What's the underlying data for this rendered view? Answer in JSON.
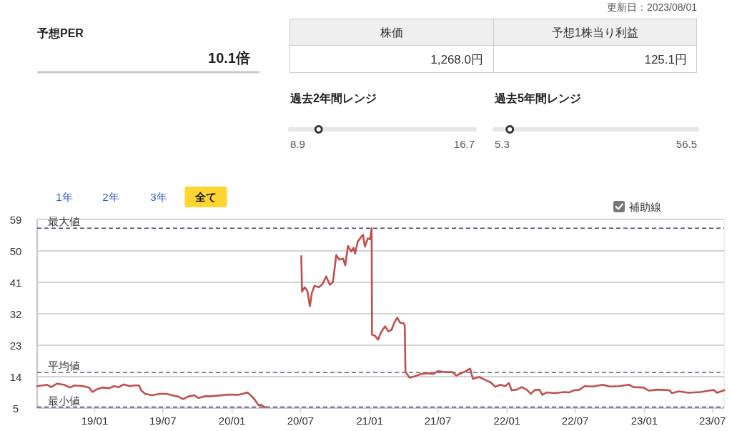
{
  "chart_data": [
    {
      "type": "other",
      "title": "予想PER",
      "annotations": [
        "10.1倍",
        "株価",
        "予想1株当り利益",
        "1,268.0円",
        "125.1円",
        "更新日：2023/08/01"
      ]
    },
    {
      "type": "other",
      "title": "過去2年間レンジ",
      "annotations": [
        "8.9",
        "16.7"
      ]
    },
    {
      "type": "other",
      "title": "過去5年間レンジ",
      "annotations": [
        "5.3",
        "56.5"
      ]
    },
    {
      "type": "line",
      "line_style": "solid",
      "grid": "y",
      "series": [
        {
          "color": "#c0504d",
          "x": [
            "2018-08-01",
            "2018-08-28",
            "2018-09-07",
            "2018-09-22",
            "2018-10-11",
            "2018-10-27",
            "2018-11-09",
            "2018-12-01",
            "2018-12-17",
            "2018-12-26",
            "2019-01-05",
            "2019-01-21",
            "2019-02-09",
            "2019-02-21",
            "2019-03-06",
            "2019-03-19",
            "2019-04-04",
            "2019-04-16",
            "2019-04-29",
            "2019-05-05",
            "2019-05-15",
            "2019-06-03",
            "2019-06-22",
            "2019-07-11",
            "2019-07-30",
            "2019-08-11",
            "2019-08-24",
            "2019-09-06",
            "2019-09-22",
            "2019-10-04",
            "2019-10-20",
            "2019-11-08",
            "2019-11-27",
            "2019-12-23",
            "2020-01-17",
            "2020-01-29",
            "2020-02-11",
            "2020-02-27",
            "2020-03-11",
            "2020-03-20",
            "2020-03-26",
            "2020-04-01"
          ],
          "values": [
            11.3,
            11.7,
            11.0,
            12.0,
            11.7,
            10.9,
            11.5,
            11.3,
            10.9,
            9.6,
            10.3,
            10.9,
            10.7,
            11.3,
            11.0,
            11.8,
            11.3,
            11.5,
            11.5,
            10.0,
            9.1,
            8.7,
            9.1,
            9.1,
            8.6,
            8.3,
            7.6,
            8.3,
            8.7,
            7.9,
            8.4,
            8.4,
            8.6,
            8.9,
            8.8,
            9.1,
            9.5,
            7.9,
            5.9,
            5.9,
            5.3,
            5.3
          ]
        },
        {
          "color": "#c0504d",
          "x": [
            "2020-07-03",
            "2020-07-05",
            "2020-07-12",
            "2020-07-19",
            "2020-07-26",
            "2020-07-31",
            "2020-08-07",
            "2020-08-19",
            "2020-08-29",
            "2020-09-07",
            "2020-09-17",
            "2020-09-25",
            "2020-10-04",
            "2020-10-12",
            "2020-10-22",
            "2020-10-28",
            "2020-11-04",
            "2020-11-13",
            "2020-11-19",
            "2020-11-23",
            "2020-11-30",
            "2020-12-09",
            "2020-12-14",
            "2020-12-19",
            "2020-12-27",
            "2021-01-02",
            "2021-01-06",
            "2021-01-07",
            "2021-01-15",
            "2021-01-23",
            "2021-01-31",
            "2021-02-11",
            "2021-02-19",
            "2021-02-28",
            "2021-03-07",
            "2021-03-15",
            "2021-03-23",
            "2021-03-31",
            "2021-04-04",
            "2021-04-06",
            "2021-04-17",
            "2021-04-30",
            "2021-05-19",
            "2021-06-03",
            "2021-06-19",
            "2021-07-02",
            "2021-07-21",
            "2021-08-09",
            "2021-08-19",
            "2021-09-10",
            "2021-09-25",
            "2021-10-02",
            "2021-10-18",
            "2021-11-02",
            "2021-11-05",
            "2021-11-18",
            "2021-12-01",
            "2021-12-14",
            "2021-12-27",
            "2022-01-06",
            "2022-01-13",
            "2022-01-27",
            "2022-02-09",
            "2022-02-22",
            "2022-03-05",
            "2022-03-16",
            "2022-03-28",
            "2022-04-05",
            "2022-04-16",
            "2022-05-08",
            "2022-06-03",
            "2022-06-15",
            "2022-06-28",
            "2022-07-11",
            "2022-07-26",
            "2022-08-18",
            "2022-09-12",
            "2022-10-01",
            "2022-10-26",
            "2022-11-21",
            "2022-12-03",
            "2022-12-29",
            "2023-01-13",
            "2023-02-05",
            "2023-03-09",
            "2023-03-15",
            "2023-04-03",
            "2023-04-28",
            "2023-05-30",
            "2023-07-04",
            "2023-07-13",
            "2023-08-01"
          ],
          "values": [
            48.5,
            38.3,
            39.6,
            38.6,
            34.2,
            37.9,
            40.0,
            39.6,
            40.6,
            42.7,
            40.3,
            41.0,
            48.8,
            47.5,
            47.8,
            45.9,
            51.4,
            49.8,
            50.9,
            49.2,
            52.6,
            54.0,
            54.6,
            51.2,
            53.6,
            53.3,
            56.5,
            26.0,
            25.7,
            24.6,
            26.7,
            28.4,
            27.0,
            27.4,
            29.4,
            30.9,
            29.4,
            29.4,
            28.7,
            15.4,
            13.7,
            14.1,
            14.8,
            15.0,
            14.8,
            15.6,
            15.3,
            15.3,
            14.3,
            15.4,
            16.3,
            13.4,
            13.9,
            13.2,
            13.0,
            12.4,
            11.1,
            11.7,
            11.3,
            12.2,
            10.1,
            10.3,
            11.0,
            10.3,
            9.1,
            10.2,
            10.3,
            8.8,
            9.5,
            9.3,
            9.6,
            9.5,
            10.1,
            10.2,
            11.3,
            11.2,
            11.7,
            11.2,
            11.3,
            11.7,
            11.0,
            10.9,
            10.0,
            10.3,
            10.1,
            9.3,
            9.8,
            9.4,
            9.6,
            10.2,
            9.4,
            10.1
          ]
        }
      ],
      "xlim": [
        "2018-08-01",
        "2023-08-01"
      ],
      "xticks": [
        {
          "value": "2019-01-01",
          "label": "19/01"
        },
        {
          "value": "2019-07-01",
          "label": "19/07"
        },
        {
          "value": "2020-01-01",
          "label": "20/01"
        },
        {
          "value": "2020-07-01",
          "label": "20/07"
        },
        {
          "value": "2021-01-01",
          "label": "21/01"
        },
        {
          "value": "2021-07-01",
          "label": "21/07"
        },
        {
          "value": "2022-01-01",
          "label": "22/01"
        },
        {
          "value": "2022-07-01",
          "label": "22/07"
        },
        {
          "value": "2023-01-01",
          "label": "23/01"
        },
        {
          "value": "2023-07-01",
          "label": "23/07"
        }
      ],
      "ylim": [
        5,
        59
      ],
      "yticks": [
        5,
        14,
        23,
        32,
        41,
        50,
        59
      ],
      "ref_lines": [
        {
          "axis": "y",
          "value": 56.5,
          "label": "最大値",
          "color": "#4e3f78",
          "line_style": "dashed"
        },
        {
          "axis": "y",
          "value": 15.2,
          "label": "平均値",
          "color": "#4e3f78",
          "line_style": "dashed"
        },
        {
          "axis": "y",
          "value": 5.3,
          "label": "最小値",
          "color": "#4e3f78",
          "line_style": "dashed"
        }
      ],
      "annotations": [
        "1年",
        "2年",
        "3年",
        "全て",
        "補助線"
      ]
    }
  ]
}
